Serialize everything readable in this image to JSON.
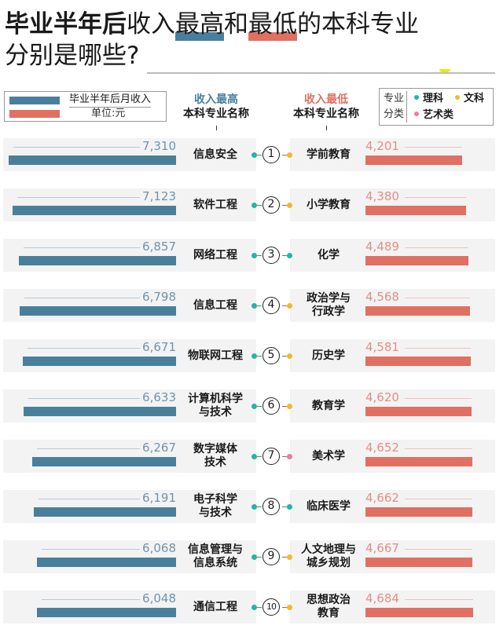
{
  "title": {
    "bold": "毕业半年后",
    "normal1": "收入",
    "highlight_high": "最高",
    "normal2": "和",
    "highlight_low": "最低",
    "normal3": "的本科专业",
    "line2": "分别是哪些?"
  },
  "legend": {
    "series_label": "毕业半年后月收入",
    "unit_label": "单位:元"
  },
  "headers": {
    "left_top": "收入最高",
    "left_bottom": "本科专业名称",
    "right_top": "收入最低",
    "right_bottom": "本科专业名称"
  },
  "category_legend": {
    "label": "专业分类",
    "items": [
      {
        "label": "理科",
        "color": "#1fb8a6"
      },
      {
        "label": "文科",
        "color": "#f3b92e"
      },
      {
        "label": "艺术类",
        "color": "#ec7ba2"
      }
    ]
  },
  "colors": {
    "high_bar": "#4a7f9c",
    "low_bar": "#e07062",
    "science": "#1fb8a6",
    "liberal_arts": "#f3b92e",
    "arts": "#ec7ba2"
  },
  "rows": [
    {
      "rank": "1",
      "high_name": "信息安全",
      "high_value": "7,310",
      "high_cat": "science",
      "low_name": "学前教育",
      "low_value": "4,201",
      "low_cat": "liberal_arts"
    },
    {
      "rank": "2",
      "high_name": "软件工程",
      "high_value": "7,123",
      "high_cat": "science",
      "low_name": "小学教育",
      "low_value": "4,380",
      "low_cat": "liberal_arts"
    },
    {
      "rank": "3",
      "high_name": "网络工程",
      "high_value": "6,857",
      "high_cat": "science",
      "low_name": "化学",
      "low_value": "4,489",
      "low_cat": "science"
    },
    {
      "rank": "4",
      "high_name": "信息工程",
      "high_value": "6,798",
      "high_cat": "science",
      "low_name": "政治学与\n行政学",
      "low_value": "4,568",
      "low_cat": "liberal_arts"
    },
    {
      "rank": "5",
      "high_name": "物联网工程",
      "high_value": "6,671",
      "high_cat": "science",
      "low_name": "历史学",
      "low_value": "4,581",
      "low_cat": "liberal_arts"
    },
    {
      "rank": "6",
      "high_name": "计算机科学\n与技术",
      "high_value": "6,633",
      "high_cat": "science",
      "low_name": "教育学",
      "low_value": "4,620",
      "low_cat": "liberal_arts"
    },
    {
      "rank": "7",
      "high_name": "数字媒体\n技术",
      "high_value": "6,267",
      "high_cat": "science",
      "low_name": "美术学",
      "low_value": "4,652",
      "low_cat": "arts"
    },
    {
      "rank": "8",
      "high_name": "电子科学\n与技术",
      "high_value": "6,191",
      "high_cat": "science",
      "low_name": "临床医学",
      "low_value": "4,662",
      "low_cat": "science"
    },
    {
      "rank": "9",
      "high_name": "信息管理与\n信息系统",
      "high_value": "6,068",
      "high_cat": "science",
      "low_name": "人文地理与\n城乡规划",
      "low_value": "4,667",
      "low_cat": "liberal_arts"
    },
    {
      "rank": "10",
      "high_name": "通信工程",
      "high_value": "6,048",
      "high_cat": "science",
      "low_name": "思想政治\n教育",
      "low_value": "4,684",
      "low_cat": "liberal_arts"
    }
  ],
  "chart_data": {
    "type": "bar",
    "title": "毕业半年后收入最高和最低的本科专业分别是哪些?",
    "ylabel": "毕业半年后月收入(单位:元)",
    "categories": [
      "1",
      "2",
      "3",
      "4",
      "5",
      "6",
      "7",
      "8",
      "9",
      "10"
    ],
    "series": [
      {
        "name": "收入最高本科专业",
        "labels": [
          "信息安全",
          "软件工程",
          "网络工程",
          "信息工程",
          "物联网工程",
          "计算机科学与技术",
          "数字媒体技术",
          "电子科学与技术",
          "信息管理与信息系统",
          "通信工程"
        ],
        "values": [
          7310,
          7123,
          6857,
          6798,
          6671,
          6633,
          6267,
          6191,
          6068,
          6048
        ]
      },
      {
        "name": "收入最低本科专业",
        "labels": [
          "学前教育",
          "小学教育",
          "化学",
          "政治学与行政学",
          "历史学",
          "教育学",
          "美术学",
          "临床医学",
          "人文地理与城乡规划",
          "思想政治教育"
        ],
        "values": [
          4201,
          4380,
          4489,
          4568,
          4581,
          4620,
          4652,
          4662,
          4667,
          4684
        ]
      }
    ],
    "legend": [
      "理科",
      "文科",
      "艺术类"
    ],
    "orientation": "horizontal",
    "grid": false
  }
}
